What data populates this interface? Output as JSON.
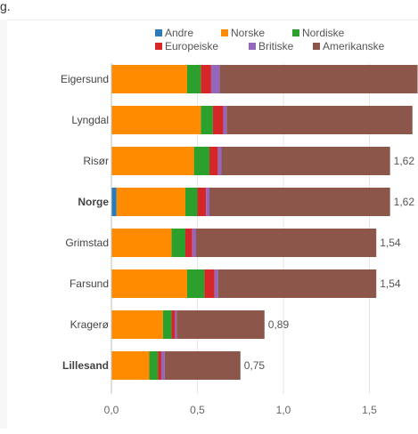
{
  "page": {
    "top_fragment": "g."
  },
  "chart_data": {
    "type": "bar",
    "orientation": "horizontal",
    "stacked": true,
    "title": "",
    "xlabel": "",
    "ylabel": "",
    "xlim": [
      0,
      1.8
    ],
    "x_ticks": [
      0,
      0.5,
      1.0,
      1.5
    ],
    "x_tick_labels": [
      "0,0",
      "0,5",
      "1,0",
      "1,5"
    ],
    "grid": true,
    "legend_placement": "top-right",
    "categories": [
      "Eigersund",
      "Lyngdal",
      "Risør",
      "Norge",
      "Grimstad",
      "Farsund",
      "Kragerø",
      "Lillesand"
    ],
    "bold_categories": [
      "Norge",
      "Lillesand"
    ],
    "series": [
      {
        "name": "Andre",
        "color": "#2b7bb9",
        "values": [
          0,
          0,
          0,
          0.03,
          0,
          0,
          0,
          0
        ]
      },
      {
        "name": "Norske",
        "color": "#ff8c00",
        "values": [
          0.44,
          0.52,
          0.48,
          0.4,
          0.35,
          0.44,
          0.3,
          0.22
        ]
      },
      {
        "name": "Nordiske",
        "color": "#2ca02c",
        "values": [
          0.08,
          0.07,
          0.09,
          0.07,
          0.08,
          0.1,
          0.05,
          0.05
        ]
      },
      {
        "name": "Europeiske",
        "color": "#d62728",
        "values": [
          0.06,
          0.06,
          0.05,
          0.05,
          0.04,
          0.06,
          0.02,
          0.02
        ]
      },
      {
        "name": "Britiske",
        "color": "#9467bd",
        "values": [
          0.05,
          0.02,
          0.02,
          0.02,
          0.02,
          0.02,
          0.01,
          0.02
        ]
      },
      {
        "name": "Amerikanske",
        "color": "#8c564b",
        "values": [
          1.15,
          1.08,
          0.98,
          1.05,
          1.05,
          0.92,
          0.51,
          0.44
        ]
      }
    ],
    "totals": [
      1.78,
      1.75,
      1.62,
      1.62,
      1.54,
      1.54,
      0.89,
      0.75
    ],
    "total_labels": [
      "",
      "",
      "1,62",
      "1,62",
      "1,54",
      "1,54",
      "0,89",
      "0,75"
    ]
  }
}
